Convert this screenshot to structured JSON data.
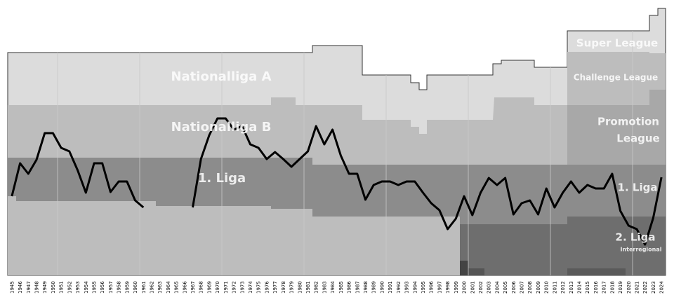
{
  "chart_data": {
    "type": "line",
    "annotations": [
      "Nationalliga A",
      "Nationalliga B",
      "1. Liga",
      "Super League",
      "Challenge League",
      "Promotion",
      "League",
      "1. Liga",
      "2. Liga",
      "Interregional"
    ],
    "categories": [
      "1945",
      "1946",
      "1947",
      "1948",
      "1949",
      "1950",
      "1951",
      "1952",
      "1953",
      "1954",
      "1955",
      "1956",
      "1957",
      "1958",
      "1959",
      "1960",
      "1961",
      "1962",
      "1963",
      "1964",
      "1965",
      "1966",
      "1967",
      "1968",
      "1969",
      "1970",
      "1971",
      "1972",
      "1973",
      "1974",
      "1975",
      "1976",
      "1977",
      "1978",
      "1979",
      "1980",
      "1981",
      "1982",
      "1983",
      "1984",
      "1985",
      "1986",
      "1987",
      "1988",
      "1989",
      "1990",
      "1991",
      "1992",
      "1993",
      "1994",
      "1995",
      "1996",
      "1997",
      "1998",
      "1999",
      "2000",
      "2001",
      "2002",
      "2003",
      "2004",
      "2005",
      "2006",
      "2007",
      "2008",
      "2009",
      "2010",
      "2011",
      "2012",
      "2013",
      "2014",
      "2015",
      "2016",
      "2017",
      "2018",
      "2019",
      "2020",
      "2021",
      "2022",
      "2023",
      "2024"
    ],
    "values": [
      113,
      160,
      145,
      165,
      203,
      203,
      182,
      177,
      150,
      118,
      160,
      160,
      119,
      134,
      134,
      107,
      97,
      null,
      null,
      null,
      null,
      null,
      97,
      166,
      200,
      224,
      224,
      208,
      213,
      187,
      182,
      166,
      176,
      166,
      155,
      166,
      177,
      213,
      187,
      208,
      171,
      145,
      145,
      108,
      129,
      134,
      134,
      129,
      134,
      134,
      118,
      103,
      93,
      66,
      81,
      113,
      86,
      118,
      139,
      129,
      139,
      87,
      103,
      107,
      87,
      124,
      97,
      118,
      134,
      118,
      129,
      124,
      124,
      145,
      92,
      71,
      66,
      44,
      82,
      140
    ],
    "color": "#000000",
    "ylim": [
      0,
      383
    ]
  }
}
